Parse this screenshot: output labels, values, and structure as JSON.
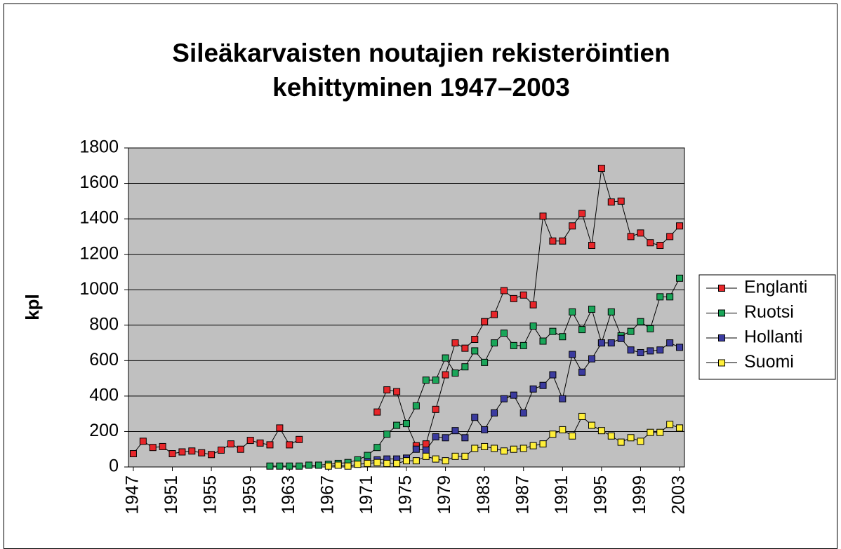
{
  "chart_data": {
    "type": "line",
    "title": [
      "Sileäkarvaisten noutajien rekisteröintien",
      "kehittyminen  1947–2003"
    ],
    "y_label": "kpl",
    "x": [
      1947,
      1948,
      1949,
      1950,
      1951,
      1952,
      1953,
      1954,
      1955,
      1956,
      1957,
      1958,
      1959,
      1960,
      1961,
      1962,
      1963,
      1964,
      1965,
      1966,
      1967,
      1968,
      1969,
      1970,
      1971,
      1972,
      1973,
      1974,
      1975,
      1976,
      1977,
      1978,
      1979,
      1980,
      1981,
      1982,
      1983,
      1984,
      1985,
      1986,
      1987,
      1988,
      1989,
      1990,
      1991,
      1992,
      1993,
      1994,
      1995,
      1996,
      1997,
      1998,
      1999,
      2000,
      2001,
      2002,
      2003
    ],
    "xlim": [
      1946.5,
      2003.5
    ],
    "xticks": [
      1947,
      1951,
      1955,
      1959,
      1963,
      1967,
      1971,
      1975,
      1979,
      1983,
      1987,
      1991,
      1995,
      1999,
      2003
    ],
    "ylim": [
      0,
      1800
    ],
    "yticks": [
      0,
      200,
      400,
      600,
      800,
      1000,
      1200,
      1400,
      1600,
      1800
    ],
    "grid": true,
    "legend": "right",
    "series": [
      {
        "name": "Englanti",
        "color": "#e8262a",
        "values": [
          75,
          145,
          110,
          115,
          75,
          85,
          90,
          80,
          70,
          95,
          130,
          100,
          150,
          135,
          125,
          220,
          125,
          155,
          null,
          null,
          null,
          null,
          null,
          null,
          null,
          310,
          435,
          425,
          245,
          120,
          130,
          325,
          520,
          700,
          670,
          720,
          820,
          860,
          995,
          950,
          970,
          915,
          1415,
          1275,
          1275,
          1360,
          1430,
          1250,
          1685,
          1495,
          1500,
          1300,
          1320,
          1265,
          1250,
          1300,
          1360
        ]
      },
      {
        "name": "Ruotsi",
        "color": "#1aa659",
        "values": [
          null,
          null,
          null,
          null,
          null,
          null,
          null,
          null,
          null,
          null,
          null,
          null,
          null,
          null,
          5,
          5,
          5,
          5,
          10,
          10,
          15,
          20,
          25,
          40,
          65,
          110,
          185,
          235,
          245,
          345,
          490,
          490,
          615,
          530,
          565,
          655,
          590,
          700,
          755,
          685,
          685,
          795,
          710,
          765,
          735,
          875,
          775,
          890,
          700,
          875,
          740,
          765,
          820,
          780,
          960,
          960,
          1065
        ]
      },
      {
        "name": "Hollanti",
        "color": "#3b3b9f",
        "values": [
          null,
          null,
          null,
          null,
          null,
          null,
          null,
          null,
          null,
          null,
          null,
          null,
          null,
          null,
          null,
          null,
          null,
          null,
          null,
          null,
          null,
          null,
          null,
          null,
          30,
          40,
          45,
          45,
          50,
          100,
          95,
          170,
          165,
          205,
          165,
          280,
          210,
          305,
          385,
          405,
          305,
          440,
          460,
          520,
          385,
          635,
          535,
          610,
          700,
          700,
          725,
          660,
          645,
          655,
          660,
          700,
          675
        ]
      },
      {
        "name": "Suomi",
        "color": "#ffef3a",
        "values": [
          null,
          null,
          null,
          null,
          null,
          null,
          null,
          null,
          null,
          null,
          null,
          null,
          null,
          null,
          null,
          null,
          null,
          null,
          null,
          null,
          5,
          10,
          5,
          15,
          20,
          25,
          20,
          20,
          35,
          35,
          60,
          45,
          35,
          60,
          60,
          105,
          115,
          105,
          90,
          100,
          105,
          120,
          130,
          185,
          210,
          175,
          285,
          235,
          205,
          175,
          140,
          165,
          145,
          195,
          195,
          240,
          220
        ]
      }
    ]
  }
}
